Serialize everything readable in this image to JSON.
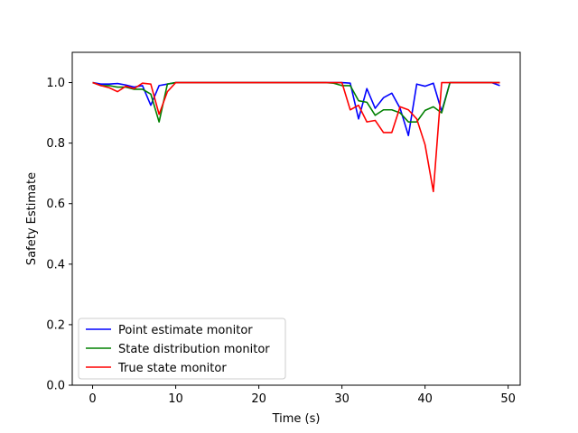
{
  "chart_data": {
    "type": "line",
    "title": "",
    "xlabel": "Time (s)",
    "ylabel": "Safety Estimate",
    "xlim": [
      -2.45,
      51.45
    ],
    "ylim": [
      0.0,
      1.1
    ],
    "xticks": [
      0,
      10,
      20,
      30,
      40,
      50
    ],
    "yticks": [
      0.0,
      0.2,
      0.4,
      0.6,
      0.8,
      1.0
    ],
    "xtick_labels": [
      "0",
      "10",
      "20",
      "30",
      "40",
      "50"
    ],
    "ytick_labels": [
      "0.0",
      "0.2",
      "0.4",
      "0.6",
      "0.8",
      "1.0"
    ],
    "grid": false,
    "legend_position": "lower-left",
    "x": [
      0,
      1,
      2,
      3,
      4,
      5,
      6,
      7,
      8,
      9,
      10,
      11,
      12,
      13,
      14,
      15,
      16,
      17,
      18,
      19,
      20,
      21,
      22,
      23,
      24,
      25,
      26,
      27,
      28,
      29,
      30,
      31,
      32,
      33,
      34,
      35,
      36,
      37,
      38,
      39,
      40,
      41,
      42,
      43,
      44,
      45,
      46,
      47,
      48,
      49
    ],
    "series": [
      {
        "name": "Point estimate monitor",
        "color": "#0000ff",
        "values": [
          1.0,
          0.995,
          0.995,
          0.997,
          0.992,
          0.985,
          0.99,
          0.925,
          0.99,
          0.995,
          1.0,
          1.0,
          1.0,
          1.0,
          1.0,
          1.0,
          1.0,
          1.0,
          1.0,
          1.0,
          1.0,
          1.0,
          1.0,
          1.0,
          1.0,
          1.0,
          1.0,
          1.0,
          1.0,
          1.0,
          1.0,
          0.998,
          0.88,
          0.98,
          0.915,
          0.95,
          0.965,
          0.915,
          0.825,
          0.995,
          0.988,
          0.998,
          0.905,
          1.0,
          1.0,
          1.0,
          1.0,
          1.0,
          1.0,
          0.99
        ]
      },
      {
        "name": "State distribution monitor",
        "color": "#008000",
        "values": [
          1.0,
          0.99,
          0.99,
          0.985,
          0.985,
          0.978,
          0.978,
          0.962,
          0.87,
          0.995,
          1.0,
          1.0,
          1.0,
          1.0,
          1.0,
          1.0,
          1.0,
          1.0,
          1.0,
          1.0,
          1.0,
          1.0,
          1.0,
          1.0,
          1.0,
          1.0,
          1.0,
          1.0,
          1.0,
          0.998,
          0.99,
          0.99,
          0.94,
          0.935,
          0.892,
          0.91,
          0.91,
          0.9,
          0.87,
          0.87,
          0.908,
          0.92,
          0.9,
          1.0,
          1.0,
          1.0,
          1.0,
          1.0,
          1.0,
          1.0
        ]
      },
      {
        "name": "True state monitor",
        "color": "#ff0000",
        "values": [
          1.0,
          0.99,
          0.983,
          0.97,
          0.988,
          0.98,
          0.998,
          0.995,
          0.895,
          0.97,
          1.0,
          1.0,
          1.0,
          1.0,
          1.0,
          1.0,
          1.0,
          1.0,
          1.0,
          1.0,
          1.0,
          1.0,
          1.0,
          1.0,
          1.0,
          1.0,
          1.0,
          1.0,
          1.0,
          1.0,
          1.0,
          0.91,
          0.925,
          0.87,
          0.875,
          0.835,
          0.835,
          0.92,
          0.91,
          0.88,
          0.795,
          0.64,
          1.0,
          1.0,
          1.0,
          1.0,
          1.0,
          1.0,
          1.0,
          1.0
        ]
      }
    ]
  }
}
